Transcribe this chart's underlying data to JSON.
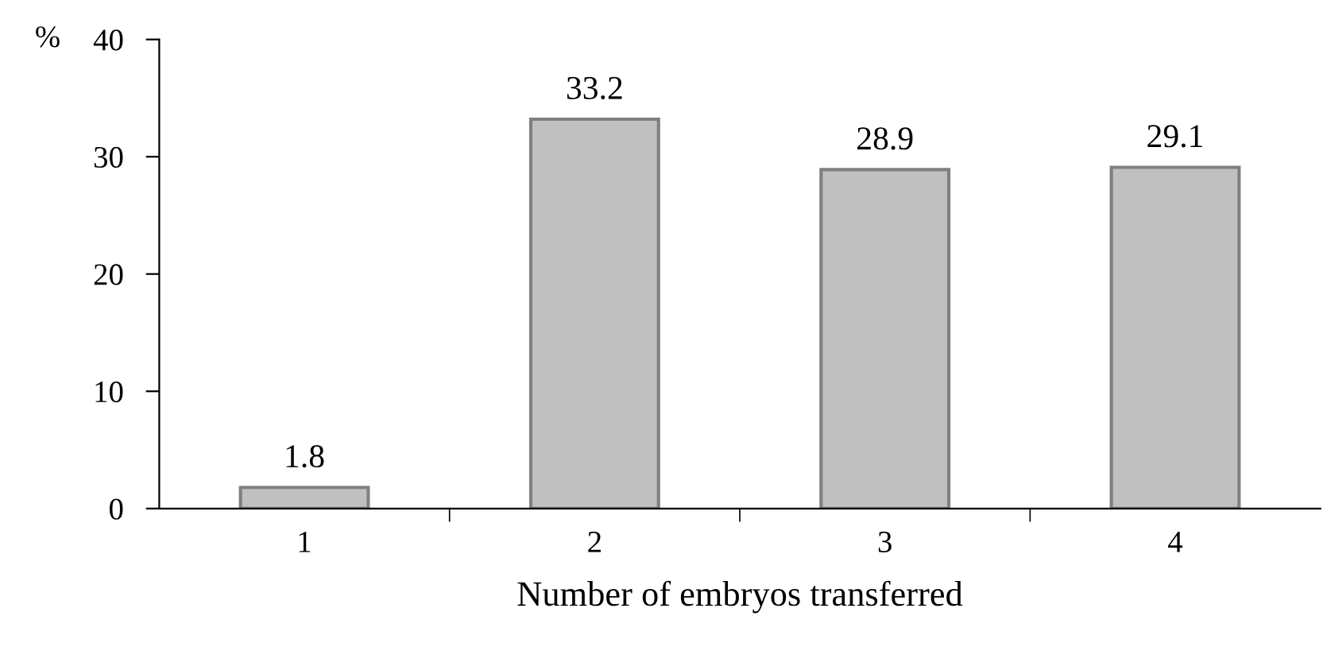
{
  "chart_data": {
    "type": "bar",
    "xlabel": "Number of embryos transferred",
    "ylabel": "%",
    "categories": [
      "1",
      "2",
      "3",
      "4"
    ],
    "values": [
      1.8,
      33.2,
      28.9,
      29.1
    ],
    "color": "#c0c0c0",
    "ylim": [
      0,
      40
    ],
    "yticks": [
      0,
      10,
      20,
      30,
      40
    ],
    "grid": false,
    "data_labels": true
  }
}
